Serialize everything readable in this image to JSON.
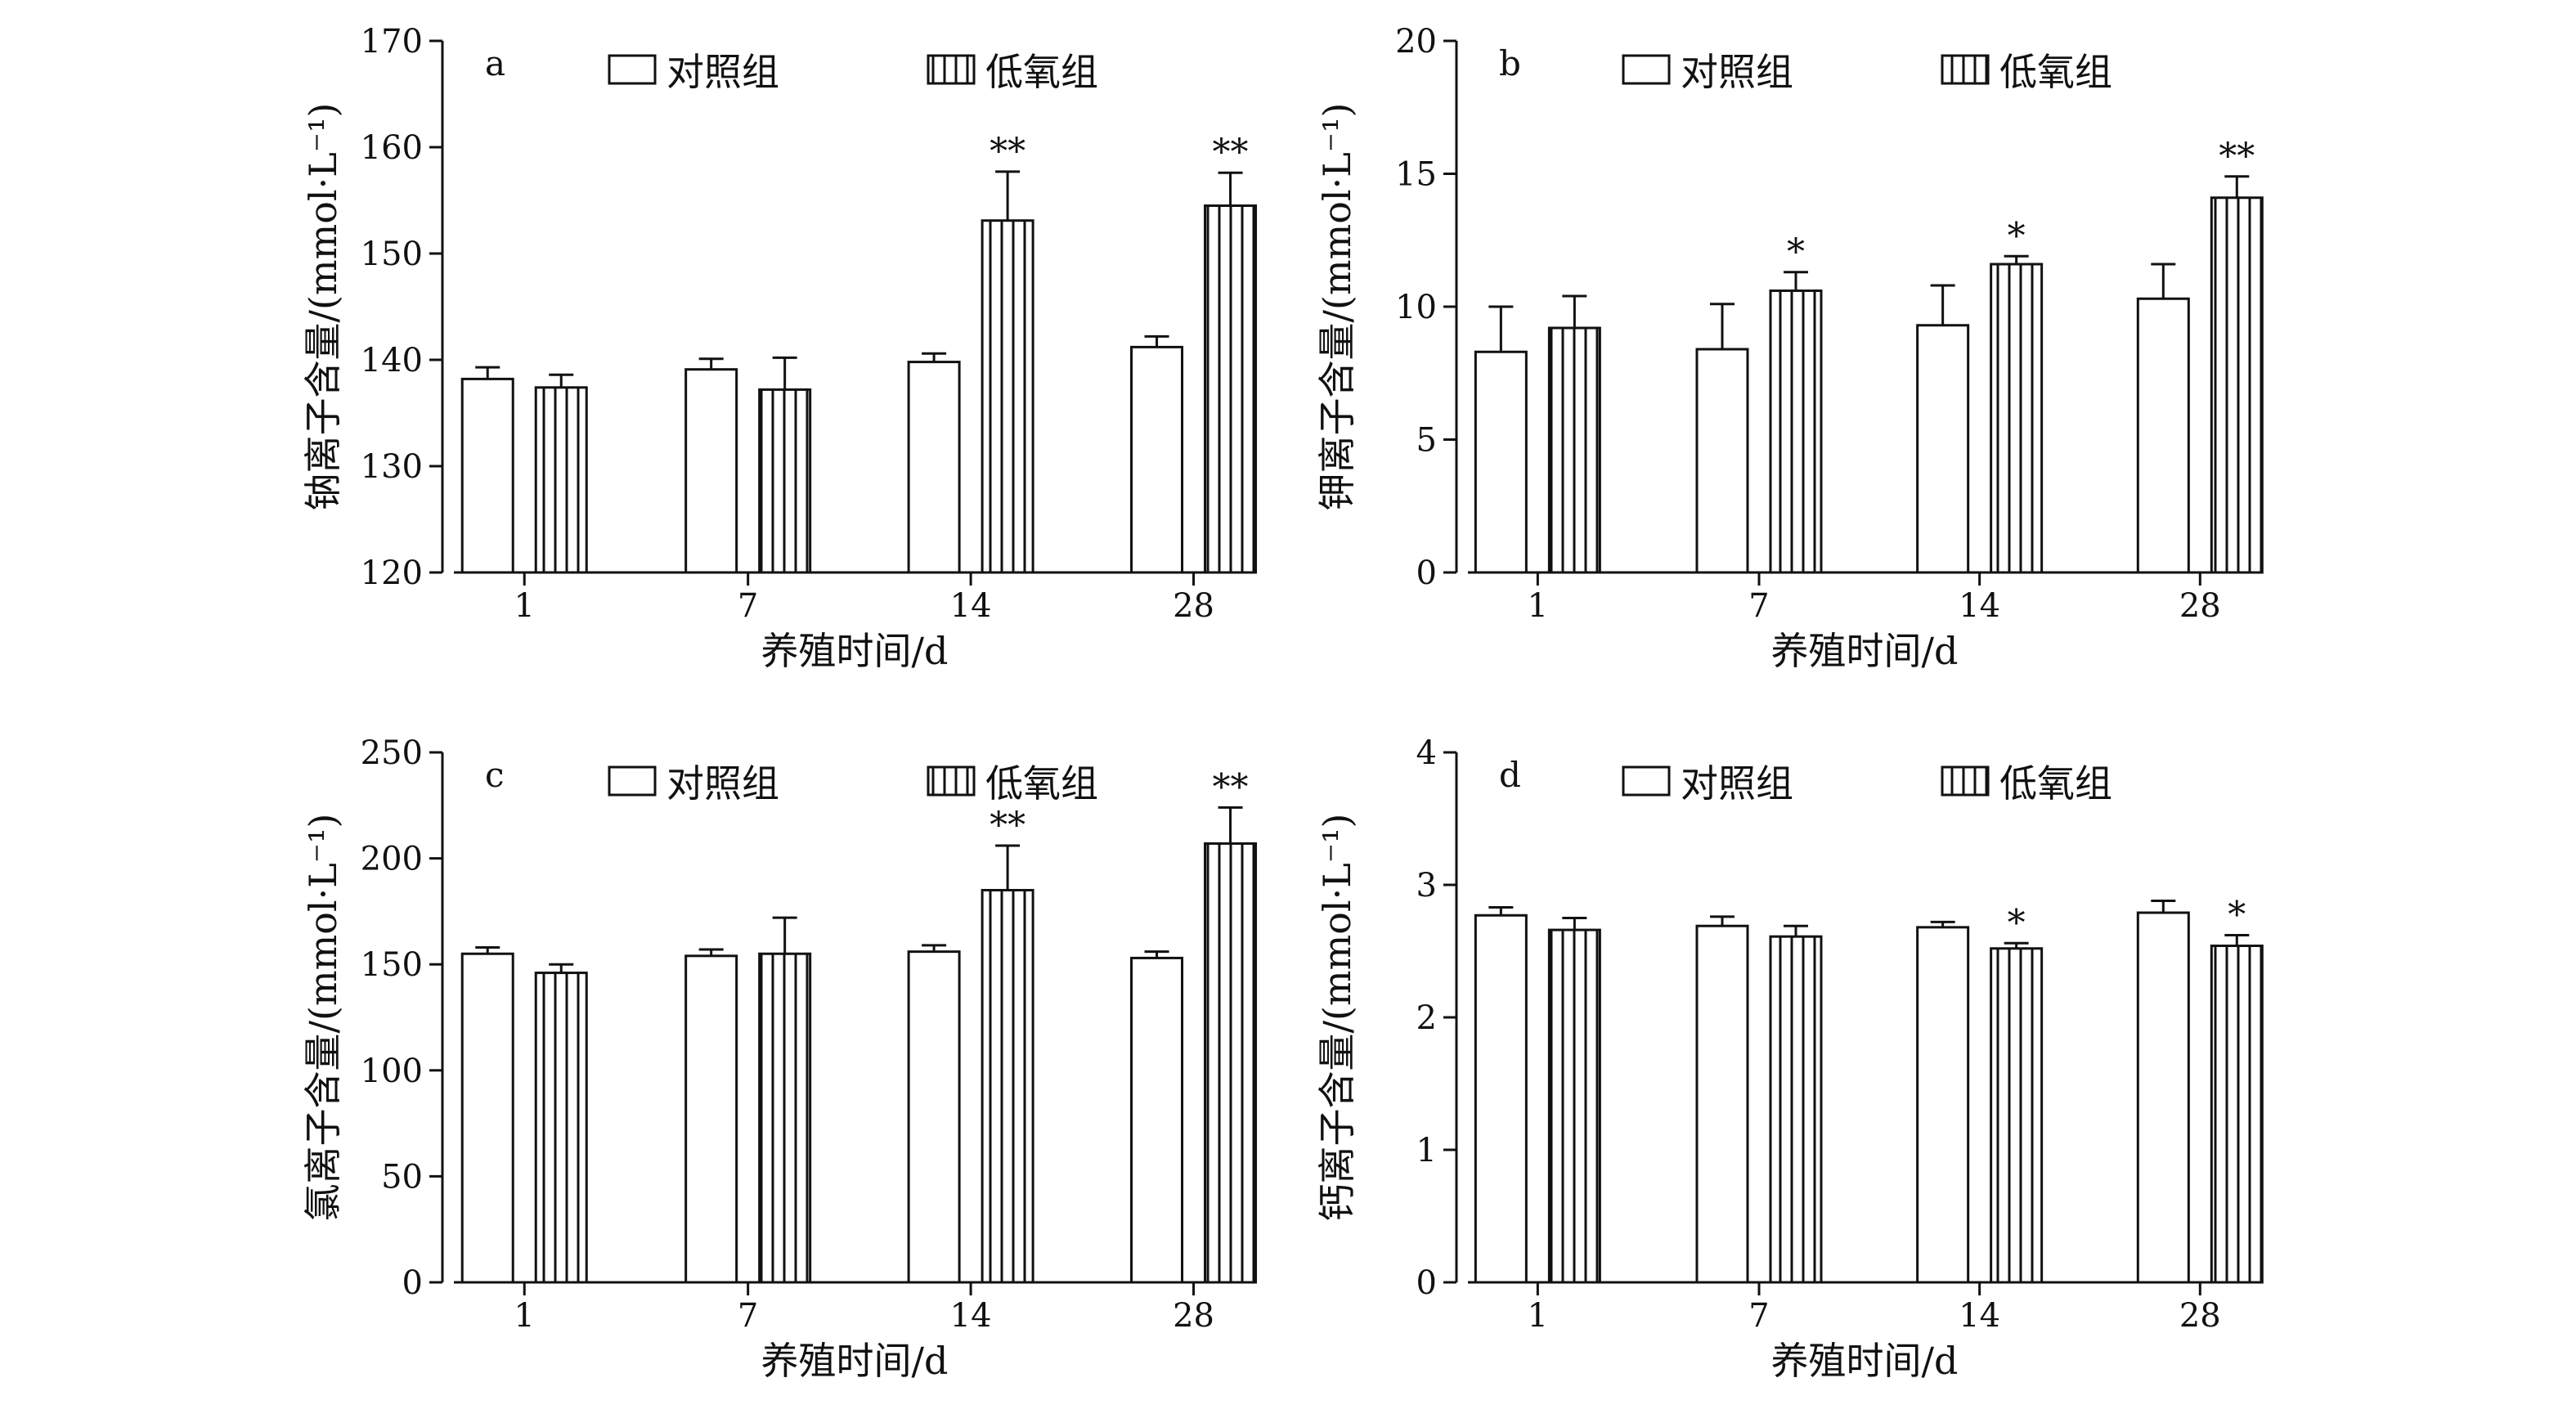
{
  "legend": {
    "control": "对照组",
    "hypoxia": "低氧组"
  },
  "chart_data": [
    {
      "panel": "a",
      "type": "bar",
      "xlabel": "养殖时间/d",
      "ylabel": "钠离子含量/(mmol·L⁻¹)",
      "categories": [
        "1",
        "7",
        "14",
        "28"
      ],
      "ylim": [
        120,
        170
      ],
      "yticks": [
        120,
        130,
        140,
        150,
        160,
        170
      ],
      "series": [
        {
          "name": "对照组",
          "values": [
            138.2,
            139.1,
            139.8,
            141.2
          ],
          "errors": [
            1.1,
            1.0,
            0.8,
            1.0
          ],
          "sig": [
            "",
            "",
            "",
            ""
          ]
        },
        {
          "name": "低氧组",
          "values": [
            137.4,
            137.2,
            153.1,
            154.5
          ],
          "errors": [
            1.2,
            3.0,
            4.6,
            3.1
          ],
          "sig": [
            "",
            "",
            "**",
            "**"
          ]
        }
      ]
    },
    {
      "panel": "b",
      "type": "bar",
      "xlabel": "养殖时间/d",
      "ylabel": "钾离子含量/(mmol·L⁻¹)",
      "categories": [
        "1",
        "7",
        "14",
        "28"
      ],
      "ylim": [
        0,
        20
      ],
      "yticks": [
        0,
        5,
        10,
        15,
        20
      ],
      "series": [
        {
          "name": "对照组",
          "values": [
            8.3,
            8.4,
            9.3,
            10.3
          ],
          "errors": [
            1.7,
            1.7,
            1.5,
            1.3
          ],
          "sig": [
            "",
            "",
            "",
            ""
          ]
        },
        {
          "name": "低氧组",
          "values": [
            9.2,
            10.6,
            11.6,
            14.1
          ],
          "errors": [
            1.2,
            0.7,
            0.3,
            0.8
          ],
          "sig": [
            "",
            "*",
            "*",
            "**"
          ]
        }
      ]
    },
    {
      "panel": "c",
      "type": "bar",
      "xlabel": "养殖时间/d",
      "ylabel": "氯离子含量/(mmol·L⁻¹)",
      "categories": [
        "1",
        "7",
        "14",
        "28"
      ],
      "ylim": [
        0,
        250
      ],
      "yticks": [
        0,
        50,
        100,
        150,
        200,
        250
      ],
      "series": [
        {
          "name": "对照组",
          "values": [
            155,
            154,
            156,
            153
          ],
          "errors": [
            3,
            3,
            3,
            3
          ],
          "sig": [
            "",
            "",
            "",
            ""
          ]
        },
        {
          "name": "低氧组",
          "values": [
            146,
            155,
            185,
            207
          ],
          "errors": [
            4,
            17,
            21,
            17
          ],
          "sig": [
            "",
            "",
            "**",
            "**"
          ]
        }
      ]
    },
    {
      "panel": "d",
      "type": "bar",
      "xlabel": "养殖时间/d",
      "ylabel": "钙离子含量/(mmol·L⁻¹)",
      "categories": [
        "1",
        "7",
        "14",
        "28"
      ],
      "ylim": [
        0,
        4
      ],
      "yticks": [
        0,
        1,
        2,
        3,
        4
      ],
      "series": [
        {
          "name": "对照组",
          "values": [
            2.77,
            2.69,
            2.68,
            2.79
          ],
          "errors": [
            0.06,
            0.07,
            0.04,
            0.09
          ],
          "sig": [
            "",
            "",
            "",
            ""
          ]
        },
        {
          "name": "低氧组",
          "values": [
            2.66,
            2.61,
            2.52,
            2.54
          ],
          "errors": [
            0.09,
            0.08,
            0.04,
            0.08
          ],
          "sig": [
            "",
            "",
            "*",
            "*"
          ]
        }
      ]
    }
  ]
}
